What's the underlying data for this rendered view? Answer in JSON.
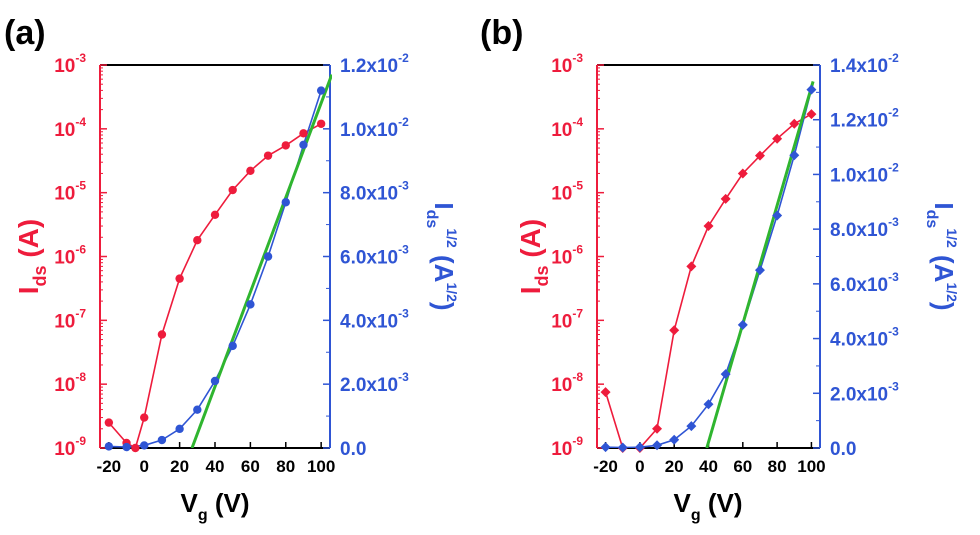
{
  "chart_data": [
    {
      "panel": "(a)",
      "type": "line",
      "xlabel": {
        "main": "V",
        "sub": "g",
        "rest": " (V)"
      },
      "ylabel_left": {
        "main": "I",
        "sub": "ds",
        "rest": " (A)"
      },
      "ylabel_right": {
        "main": "I",
        "sub": "ds",
        "sup": "1/2",
        "rest_open": " (A",
        "rest_sup": "1/2",
        "rest_close": ")"
      },
      "xlim": [
        -25,
        105
      ],
      "x_ticks": [
        "-20",
        "0",
        "20",
        "40",
        "60",
        "80",
        "100"
      ],
      "x_tick_values": [
        -20,
        0,
        20,
        40,
        60,
        80,
        100
      ],
      "y_left_scale": "log",
      "y_left_lim": [
        1e-09,
        0.001
      ],
      "y_left_ticks": [
        {
          "base": "10",
          "exp": "-9"
        },
        {
          "base": "10",
          "exp": "-8"
        },
        {
          "base": "10",
          "exp": "-7"
        },
        {
          "base": "10",
          "exp": "-6"
        },
        {
          "base": "10",
          "exp": "-5"
        },
        {
          "base": "10",
          "exp": "-4"
        },
        {
          "base": "10",
          "exp": "-3"
        }
      ],
      "y_right_lim": [
        0,
        0.012
      ],
      "y_right_ticks": [
        {
          "mant": "0.0",
          "exp": ""
        },
        {
          "mant": "2.0x10",
          "exp": "-3"
        },
        {
          "mant": "4.0x10",
          "exp": "-3"
        },
        {
          "mant": "6.0x10",
          "exp": "-3"
        },
        {
          "mant": "8.0x10",
          "exp": "-3"
        },
        {
          "mant": "1.0x10",
          "exp": "-2"
        },
        {
          "mant": "1.2x10",
          "exp": "-2"
        }
      ],
      "y_right_tick_values": [
        0,
        0.002,
        0.004,
        0.006,
        0.008,
        0.01,
        0.012
      ],
      "series": [
        {
          "axis": "left",
          "color": "#ee1c3c",
          "marker": "circle",
          "x": [
            -20,
            -10,
            -5,
            0,
            10,
            20,
            30,
            40,
            50,
            60,
            70,
            80,
            90,
            100
          ],
          "y": [
            2.5e-09,
            1.2e-09,
            1e-09,
            3e-09,
            6e-08,
            4.5e-07,
            1.8e-06,
            4.5e-06,
            1.1e-05,
            2.2e-05,
            3.8e-05,
            5.5e-05,
            8.5e-05,
            0.00012
          ]
        },
        {
          "axis": "right",
          "color": "#2f55d4",
          "marker": "circle",
          "x": [
            -20,
            -10,
            0,
            10,
            20,
            30,
            40,
            50,
            60,
            70,
            80,
            90,
            100
          ],
          "y": [
            5e-05,
            3e-05,
            8e-05,
            0.00025,
            0.0006,
            0.0012,
            0.0021,
            0.0032,
            0.0045,
            0.006,
            0.0077,
            0.0095,
            0.0112
          ]
        },
        {
          "axis": "right",
          "color": "#2fb52f",
          "marker": "none",
          "x": [
            27,
            106
          ],
          "y": [
            0,
            0.0117
          ]
        }
      ]
    },
    {
      "panel": "(b)",
      "type": "line",
      "xlabel": {
        "main": "V",
        "sub": "g",
        "rest": " (V)"
      },
      "ylabel_left": {
        "main": "I",
        "sub": "ds",
        "rest": " (A)"
      },
      "ylabel_right": {
        "main": "I",
        "sub": "ds",
        "sup": "1/2",
        "rest_open": " (A",
        "rest_sup": "1/2",
        "rest_close": ")"
      },
      "xlim": [
        -25,
        105
      ],
      "x_ticks": [
        "-20",
        "0",
        "20",
        "40",
        "60",
        "80",
        "100"
      ],
      "x_tick_values": [
        -20,
        0,
        20,
        40,
        60,
        80,
        100
      ],
      "y_left_scale": "log",
      "y_left_lim": [
        1e-09,
        0.001
      ],
      "y_left_ticks": [
        {
          "base": "10",
          "exp": "-9"
        },
        {
          "base": "10",
          "exp": "-8"
        },
        {
          "base": "10",
          "exp": "-7"
        },
        {
          "base": "10",
          "exp": "-6"
        },
        {
          "base": "10",
          "exp": "-5"
        },
        {
          "base": "10",
          "exp": "-4"
        },
        {
          "base": "10",
          "exp": "-3"
        }
      ],
      "y_right_lim": [
        0,
        0.014
      ],
      "y_right_ticks": [
        {
          "mant": "0.0",
          "exp": ""
        },
        {
          "mant": "2.0x10",
          "exp": "-3"
        },
        {
          "mant": "4.0x10",
          "exp": "-3"
        },
        {
          "mant": "6.0x10",
          "exp": "-3"
        },
        {
          "mant": "8.0x10",
          "exp": "-3"
        },
        {
          "mant": "1.0x10",
          "exp": "-2"
        },
        {
          "mant": "1.2x10",
          "exp": "-2"
        },
        {
          "mant": "1.4x10",
          "exp": "-2"
        }
      ],
      "y_right_tick_values": [
        0,
        0.002,
        0.004,
        0.006,
        0.008,
        0.01,
        0.012,
        0.014
      ],
      "series": [
        {
          "axis": "left",
          "color": "#ee1c3c",
          "marker": "diamond",
          "x": [
            -20,
            -10,
            0,
            10,
            20,
            30,
            40,
            50,
            60,
            70,
            80,
            90,
            100
          ],
          "y": [
            7.5e-09,
            1e-09,
            1e-09,
            2e-09,
            7e-08,
            7e-07,
            3e-06,
            8e-06,
            2e-05,
            3.8e-05,
            7e-05,
            0.00012,
            0.00017
          ]
        },
        {
          "axis": "right",
          "color": "#2f55d4",
          "marker": "diamond",
          "x": [
            -20,
            -10,
            0,
            10,
            20,
            30,
            40,
            50,
            60,
            70,
            80,
            90,
            100
          ],
          "y": [
            3e-05,
            2e-05,
            3e-05,
            0.0001,
            0.0003,
            0.0008,
            0.0016,
            0.0027,
            0.0045,
            0.0065,
            0.0085,
            0.0107,
            0.0131
          ]
        },
        {
          "axis": "right",
          "color": "#2fb52f",
          "marker": "none",
          "x": [
            39,
            101
          ],
          "y": [
            0,
            0.0134
          ]
        }
      ]
    }
  ]
}
